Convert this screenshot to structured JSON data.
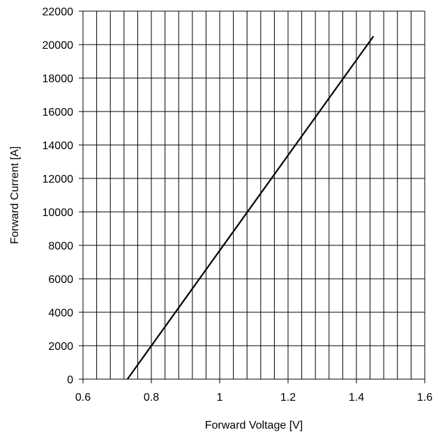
{
  "chart_data": {
    "type": "line",
    "title": "",
    "xlabel": "Forward Voltage [V]",
    "ylabel": "Forward Current [A]",
    "xlim": [
      0.6,
      1.6
    ],
    "ylim": [
      0,
      22000
    ],
    "xticks": [
      0.6,
      0.8,
      1,
      1.2,
      1.4,
      1.6
    ],
    "xtick_labels": [
      "0.6",
      "0.8",
      "1",
      "1.2",
      "1.4",
      "1.6"
    ],
    "yticks": [
      0,
      2000,
      4000,
      6000,
      8000,
      10000,
      12000,
      14000,
      16000,
      18000,
      20000,
      22000
    ],
    "ytick_labels": [
      "0",
      "2000",
      "4000",
      "6000",
      "8000",
      "10000",
      "12000",
      "14000",
      "16000",
      "18000",
      "20000",
      "22000"
    ],
    "x_minor_step": 0.04,
    "y_minor_step": 2000,
    "grid": true,
    "series": [
      {
        "color": "#000000",
        "x": [
          0.73,
          1.45
        ],
        "y": [
          0,
          20500
        ]
      }
    ]
  }
}
